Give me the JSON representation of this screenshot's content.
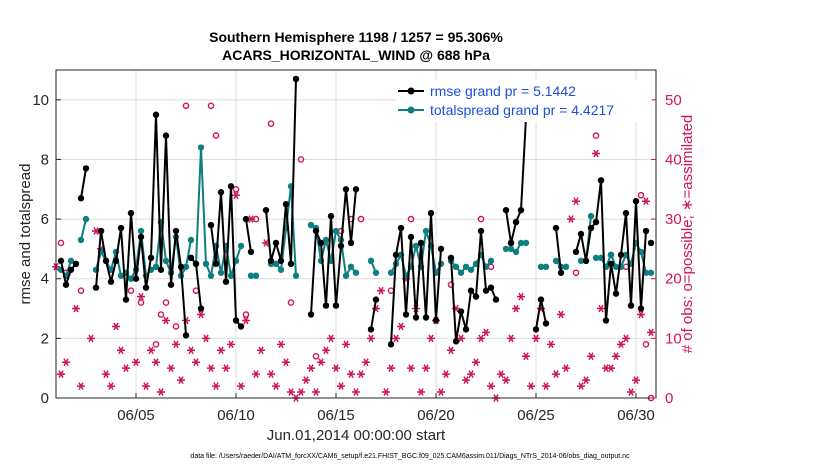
{
  "chart_data": {
    "type": "line",
    "title_line1": "Southern Hemisphere 1198 / 1257 = 95.306%",
    "title_line2": "ACARS_HORIZONTAL_WIND @ 688 hPa",
    "xlabel": "Jun.01,2014 00:00:00 start",
    "ylabel_left": "rmse and totalspread",
    "ylabel_right": "# of obs: o=possible; ∗=assimilated",
    "footnote": "data file: /Users/raeder/DAI/ATM_forcXX/CAM6_setup/f.e21.FHIST_BGC.f09_025.CAM6assim.011/Diags_NTrS_2014-06/obs_diag_output.nc",
    "xlim": [
      1.0,
      31.0
    ],
    "ylim_left": [
      0,
      11
    ],
    "ylim_right": [
      0,
      55
    ],
    "x_ticks": [
      5,
      10,
      15,
      20,
      25,
      30
    ],
    "x_tick_labels": [
      "06/05",
      "06/10",
      "06/15",
      "06/20",
      "06/25",
      "06/30"
    ],
    "y_left_ticks": [
      "0",
      "2",
      "4",
      "6",
      "8",
      "10"
    ],
    "y_right_ticks": [
      "0",
      "10",
      "20",
      "30",
      "40",
      "50"
    ],
    "grid": true,
    "colors": {
      "rmse": "#000000",
      "spread": "#0e7f80",
      "obs": "#d1145a",
      "legend_text": "#1d4ed8"
    },
    "legend": [
      {
        "name": "rmse",
        "label": "rmse grand pr = 5.1442"
      },
      {
        "name": "spread",
        "label": "totalspread grand pr = 4.4217"
      }
    ],
    "rmse_segments": [
      [
        [
          1.25,
          4.6
        ],
        [
          1.5,
          3.8
        ],
        [
          1.75,
          4.3
        ],
        [
          2.0,
          4.5
        ]
      ],
      [
        [
          2.25,
          6.7
        ],
        [
          2.5,
          7.7
        ]
      ],
      [
        [
          3.0,
          3.7
        ],
        [
          3.25,
          5.6
        ],
        [
          3.5,
          4.6
        ],
        [
          3.75,
          3.9
        ],
        [
          4.0,
          4.6
        ],
        [
          4.25,
          5.7
        ],
        [
          4.5,
          3.3
        ],
        [
          4.75,
          6.2
        ],
        [
          5.0,
          4.0
        ],
        [
          5.25,
          5.4
        ],
        [
          5.5,
          3.7
        ],
        [
          5.75,
          4.7
        ],
        [
          6.0,
          9.5
        ],
        [
          6.25,
          4.3
        ],
        [
          6.5,
          8.8
        ],
        [
          6.75,
          3.8
        ],
        [
          7.0,
          5.6
        ],
        [
          7.25,
          4.4
        ],
        [
          7.5,
          2.1
        ]
      ],
      [
        [
          7.75,
          4.7
        ],
        [
          8.0,
          4.5
        ],
        [
          8.25,
          3.0
        ]
      ],
      [
        [
          8.75,
          5.8
        ],
        [
          9.0,
          4.5
        ],
        [
          9.25,
          6.9
        ],
        [
          9.5,
          3.9
        ],
        [
          9.75,
          7.1
        ],
        [
          10.0,
          2.6
        ],
        [
          10.25,
          2.4
        ]
      ],
      [
        [
          10.5,
          6.0
        ],
        [
          10.75,
          4.9
        ]
      ],
      [
        [
          11.5,
          6.3
        ],
        [
          11.75,
          4.6
        ],
        [
          12.0,
          5.2
        ],
        [
          12.25,
          4.6
        ],
        [
          12.5,
          6.5
        ],
        [
          12.75,
          4.5
        ],
        [
          13.0,
          10.7
        ]
      ],
      [
        [
          13.75,
          2.8
        ],
        [
          14.0,
          5.6
        ],
        [
          14.25,
          5.2
        ],
        [
          14.5,
          3.1
        ],
        [
          14.75,
          6.1
        ],
        [
          15.0,
          3.1
        ],
        [
          15.25,
          5.1
        ],
        [
          15.5,
          7.0
        ],
        [
          15.75,
          5.2
        ],
        [
          16.0,
          7.0
        ]
      ],
      [
        [
          16.75,
          2.3
        ],
        [
          17.0,
          3.3
        ]
      ],
      [
        [
          17.75,
          1.8
        ],
        [
          18.0,
          4.8
        ],
        [
          18.25,
          5.7
        ],
        [
          18.5,
          2.8
        ],
        [
          18.75,
          5.4
        ],
        [
          19.0,
          2.7
        ],
        [
          19.25,
          5.2
        ],
        [
          19.5,
          2.7
        ],
        [
          19.75,
          6.2
        ],
        [
          20.0,
          2.6
        ],
        [
          20.25,
          5.0
        ]
      ],
      [
        [
          20.75,
          4.7
        ],
        [
          21.0,
          1.9
        ],
        [
          21.25,
          2.9
        ],
        [
          21.5,
          2.3
        ],
        [
          21.75,
          3.6
        ],
        [
          22.0,
          3.4
        ],
        [
          22.25,
          5.6
        ],
        [
          22.5,
          3.6
        ],
        [
          22.75,
          3.7
        ],
        [
          23.0,
          3.3
        ]
      ],
      [
        [
          23.5,
          6.3
        ],
        [
          23.75,
          5.2
        ],
        [
          24.0,
          5.9
        ],
        [
          24.25,
          6.3
        ],
        [
          24.5,
          9.4
        ]
      ],
      [
        [
          25.0,
          2.3
        ],
        [
          25.25,
          3.3
        ],
        [
          25.5,
          2.5
        ]
      ],
      [
        [
          26.0,
          5.7
        ],
        [
          26.25,
          4.2
        ]
      ],
      [
        [
          27.0,
          4.9
        ],
        [
          27.25,
          5.5
        ],
        [
          27.5,
          4.6
        ],
        [
          27.75,
          5.7
        ],
        [
          28.0,
          5.9
        ],
        [
          28.25,
          7.3
        ],
        [
          28.5,
          2.6
        ],
        [
          28.75,
          4.5
        ],
        [
          29.0,
          3.5
        ],
        [
          29.25,
          4.8
        ],
        [
          29.5,
          6.2
        ],
        [
          29.75,
          3.1
        ],
        [
          30.0,
          6.6
        ],
        [
          30.25,
          3.0
        ],
        [
          30.5,
          5.6
        ]
      ],
      [
        [
          30.75,
          5.2
        ]
      ]
    ],
    "spread_segments": [
      [
        [
          1.25,
          4.3
        ],
        [
          1.5,
          4.1
        ],
        [
          1.75,
          4.6
        ]
      ],
      [
        [
          2.25,
          5.3
        ],
        [
          2.5,
          6.0
        ]
      ],
      [
        [
          3.0,
          4.3
        ],
        [
          3.25,
          4.9
        ],
        [
          3.5,
          4.6
        ],
        [
          3.75,
          4.3
        ],
        [
          4.0,
          4.9
        ],
        [
          4.25,
          4.1
        ],
        [
          4.5,
          4.2
        ],
        [
          4.75,
          4.0
        ],
        [
          5.0,
          4.3
        ],
        [
          5.25,
          5.6
        ],
        [
          5.5,
          4.1
        ],
        [
          5.75,
          4.3
        ],
        [
          6.0,
          4.4
        ],
        [
          6.25,
          5.9
        ],
        [
          6.5,
          4.6
        ],
        [
          6.75,
          4.2
        ],
        [
          7.0,
          5.4
        ],
        [
          7.25,
          4.1
        ],
        [
          7.5,
          4.4
        ],
        [
          7.75,
          5.3
        ]
      ],
      [
        [
          8.0,
          4.5
        ],
        [
          8.25,
          8.4
        ],
        [
          8.5,
          4.5
        ],
        [
          8.75,
          4.1
        ],
        [
          9.0,
          5.1
        ],
        [
          9.25,
          4.2
        ],
        [
          9.5,
          5.1
        ],
        [
          9.75,
          4.1
        ],
        [
          10.0,
          4.6
        ],
        [
          10.25,
          5.1
        ]
      ],
      [
        [
          10.75,
          4.1
        ],
        [
          11.0,
          4.1
        ]
      ],
      [
        [
          11.75,
          4.5
        ],
        [
          12.0,
          4.5
        ],
        [
          12.25,
          4.3
        ],
        [
          12.5,
          5.7
        ],
        [
          12.75,
          7.1
        ],
        [
          13.0,
          4.1
        ]
      ],
      [
        [
          13.75,
          5.8
        ],
        [
          14.0,
          5.7
        ],
        [
          14.25,
          4.6
        ],
        [
          14.5,
          5.3
        ],
        [
          14.75,
          4.6
        ],
        [
          15.0,
          5.6
        ],
        [
          15.25,
          5.3
        ],
        [
          15.5,
          4.1
        ],
        [
          15.75,
          4.4
        ],
        [
          16.0,
          4.2
        ]
      ],
      [
        [
          16.75,
          4.6
        ],
        [
          17.0,
          4.2
        ]
      ],
      [
        [
          17.75,
          4.2
        ],
        [
          18.0,
          4.5
        ],
        [
          18.25,
          4.8
        ],
        [
          18.5,
          4.1
        ],
        [
          18.75,
          4.4
        ],
        [
          19.0,
          5.1
        ],
        [
          19.25,
          4.4
        ],
        [
          19.5,
          5.6
        ],
        [
          19.75,
          5.1
        ],
        [
          20.0,
          4.2
        ],
        [
          20.25,
          4.5
        ]
      ],
      [
        [
          20.75,
          4.6
        ],
        [
          21.0,
          4.4
        ],
        [
          21.25,
          4.2
        ],
        [
          21.5,
          4.4
        ],
        [
          21.75,
          4.3
        ],
        [
          22.0,
          4.5
        ],
        [
          22.25,
          4.8
        ],
        [
          22.5,
          4.4
        ],
        [
          22.75,
          4.6
        ]
      ],
      [
        [
          23.5,
          5.0
        ],
        [
          23.75,
          5.0
        ],
        [
          24.0,
          4.9
        ],
        [
          24.25,
          5.2
        ],
        [
          24.5,
          5.2
        ]
      ],
      [
        [
          25.25,
          4.4
        ],
        [
          25.5,
          4.4
        ]
      ],
      [
        [
          26.0,
          4.6
        ],
        [
          26.25,
          4.4
        ],
        [
          26.5,
          4.4
        ]
      ],
      [
        [
          27.25,
          4.6
        ],
        [
          27.5,
          4.6
        ],
        [
          27.75,
          6.1
        ]
      ],
      [
        [
          28.0,
          4.7
        ],
        [
          28.25,
          4.7
        ],
        [
          28.5,
          4.4
        ],
        [
          28.75,
          4.8
        ],
        [
          29.0,
          4.4
        ],
        [
          29.25,
          4.4
        ],
        [
          29.5,
          4.8
        ],
        [
          29.75,
          4.5
        ],
        [
          30.0,
          5.2
        ],
        [
          30.25,
          4.9
        ],
        [
          30.5,
          4.2
        ],
        [
          30.75,
          4.2
        ]
      ]
    ],
    "obs_possible": [
      [
        1.25,
        26
      ],
      [
        1.5,
        21
      ],
      [
        2.25,
        18
      ],
      [
        3.25,
        28
      ],
      [
        4.75,
        18
      ],
      [
        5.25,
        16
      ],
      [
        6.0,
        9
      ],
      [
        6.25,
        14
      ],
      [
        6.5,
        16
      ],
      [
        7.0,
        12
      ],
      [
        7.5,
        49
      ],
      [
        8.0,
        18
      ],
      [
        8.75,
        49
      ],
      [
        9.0,
        44
      ],
      [
        10.0,
        35
      ],
      [
        10.5,
        14
      ],
      [
        11.0,
        30
      ],
      [
        11.75,
        46
      ],
      [
        12.75,
        16
      ],
      [
        13.25,
        40
      ],
      [
        14.0,
        7
      ],
      [
        15.25,
        28
      ],
      [
        15.75,
        30
      ],
      [
        16.25,
        30
      ],
      [
        17.75,
        18
      ],
      [
        18.75,
        30
      ],
      [
        20.75,
        19
      ],
      [
        22.25,
        30
      ],
      [
        22.75,
        22
      ],
      [
        23.75,
        26
      ],
      [
        27.0,
        21
      ],
      [
        28.0,
        44
      ],
      [
        28.75,
        24
      ],
      [
        29.5,
        22
      ],
      [
        30.25,
        34
      ],
      [
        30.5,
        9
      ],
      [
        30.75,
        0
      ]
    ],
    "obs_assimilated": [
      [
        1.0,
        22
      ],
      [
        1.25,
        4
      ],
      [
        1.5,
        6
      ],
      [
        2.0,
        15
      ],
      [
        2.25,
        2
      ],
      [
        2.75,
        10
      ],
      [
        3.0,
        28
      ],
      [
        3.25,
        25
      ],
      [
        3.5,
        4
      ],
      [
        3.75,
        2
      ],
      [
        4.0,
        12
      ],
      [
        4.25,
        8
      ],
      [
        4.5,
        5
      ],
      [
        5.0,
        6
      ],
      [
        5.25,
        17
      ],
      [
        5.5,
        2
      ],
      [
        5.75,
        8
      ],
      [
        6.0,
        6
      ],
      [
        6.25,
        1
      ],
      [
        6.5,
        13
      ],
      [
        6.75,
        5
      ],
      [
        7.0,
        9
      ],
      [
        7.25,
        3
      ],
      [
        7.5,
        13
      ],
      [
        7.75,
        8
      ],
      [
        8.0,
        6
      ],
      [
        8.25,
        14
      ],
      [
        8.5,
        10
      ],
      [
        8.75,
        5
      ],
      [
        9.0,
        2
      ],
      [
        9.25,
        8
      ],
      [
        9.5,
        5
      ],
      [
        9.75,
        9
      ],
      [
        10.0,
        34
      ],
      [
        10.25,
        2
      ],
      [
        10.5,
        13
      ],
      [
        10.75,
        30
      ],
      [
        11.0,
        4
      ],
      [
        11.25,
        8
      ],
      [
        11.5,
        26
      ],
      [
        11.75,
        4
      ],
      [
        12.0,
        2
      ],
      [
        12.25,
        9
      ],
      [
        12.5,
        6
      ],
      [
        12.75,
        1
      ],
      [
        13.0,
        0
      ],
      [
        13.25,
        1
      ],
      [
        13.5,
        3
      ],
      [
        13.75,
        5
      ],
      [
        14.0,
        1
      ],
      [
        14.25,
        6
      ],
      [
        14.5,
        8
      ],
      [
        14.75,
        10
      ],
      [
        15.0,
        5
      ],
      [
        15.25,
        2
      ],
      [
        15.5,
        9
      ],
      [
        15.75,
        4
      ],
      [
        16.0,
        1
      ],
      [
        16.25,
        4
      ],
      [
        16.5,
        6
      ],
      [
        16.75,
        10
      ],
      [
        17.0,
        15
      ],
      [
        17.25,
        18
      ],
      [
        17.5,
        1
      ],
      [
        17.75,
        5
      ],
      [
        18.0,
        10
      ],
      [
        18.25,
        12
      ],
      [
        18.5,
        20
      ],
      [
        18.75,
        5
      ],
      [
        19.0,
        15
      ],
      [
        19.25,
        1
      ],
      [
        19.5,
        5
      ],
      [
        19.75,
        10
      ],
      [
        20.0,
        13
      ],
      [
        20.25,
        1
      ],
      [
        20.5,
        4
      ],
      [
        20.75,
        8
      ],
      [
        21.0,
        15
      ],
      [
        21.25,
        10
      ],
      [
        21.5,
        3
      ],
      [
        21.75,
        4
      ],
      [
        22.0,
        6
      ],
      [
        22.25,
        10
      ],
      [
        22.5,
        11
      ],
      [
        22.75,
        2
      ],
      [
        23.0,
        0
      ],
      [
        23.25,
        4
      ],
      [
        23.5,
        3
      ],
      [
        23.75,
        10
      ],
      [
        24.0,
        15
      ],
      [
        24.25,
        17
      ],
      [
        24.5,
        7
      ],
      [
        24.75,
        2
      ],
      [
        25.0,
        10
      ],
      [
        25.25,
        15
      ],
      [
        25.5,
        2
      ],
      [
        25.75,
        9
      ],
      [
        26.0,
        4
      ],
      [
        26.25,
        14
      ],
      [
        26.5,
        5
      ],
      [
        26.75,
        30
      ],
      [
        27.0,
        33
      ],
      [
        27.25,
        2
      ],
      [
        27.5,
        3
      ],
      [
        27.75,
        7
      ],
      [
        28.0,
        41
      ],
      [
        28.25,
        15
      ],
      [
        28.5,
        5
      ],
      [
        28.75,
        5
      ],
      [
        29.0,
        7
      ],
      [
        29.25,
        9
      ],
      [
        29.5,
        10
      ],
      [
        29.75,
        1
      ],
      [
        30.0,
        3
      ],
      [
        30.25,
        14
      ],
      [
        30.5,
        33
      ],
      [
        30.75,
        11
      ]
    ]
  }
}
